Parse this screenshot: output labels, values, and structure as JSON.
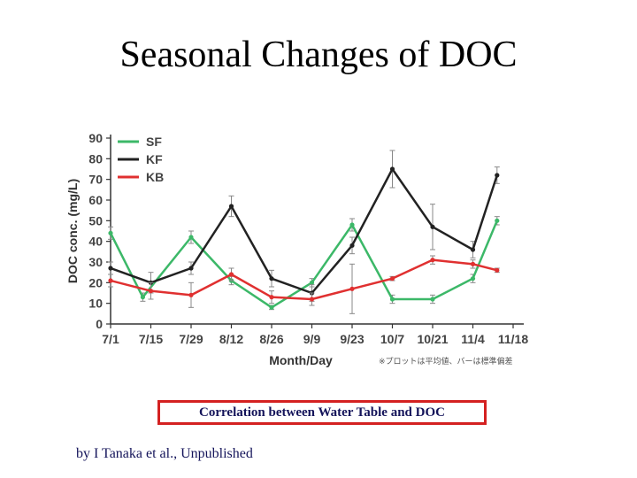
{
  "slide": {
    "title": "Seasonal Changes of DOC",
    "caption": "Correlation between Water Table and DOC",
    "attribution": "by I Tanaka et al., Unpublished"
  },
  "chart_data": {
    "type": "line",
    "title": "",
    "xlabel": "Month/Day",
    "ylabel": "DOC conc. (mg/L)",
    "x_note": "※プロットは平均値、バーは標準偏差",
    "ylim": [
      0,
      90
    ],
    "yticks": [
      0,
      10,
      20,
      30,
      40,
      50,
      60,
      70,
      80,
      90
    ],
    "categories": [
      "7/1",
      "7/15",
      "7/29",
      "8/12",
      "8/26",
      "9/9",
      "9/23",
      "10/7",
      "10/21",
      "11/4",
      "11/18"
    ],
    "legend_position": "top-left",
    "series": [
      {
        "name": "SF",
        "color": "#3cb868",
        "x": [
          0,
          0.8,
          2,
          3,
          4,
          5,
          6,
          7,
          8,
          9,
          9.6
        ],
        "values": [
          44,
          13,
          42,
          21,
          8,
          20,
          48,
          12,
          12,
          22,
          50
        ],
        "err": [
          3,
          2,
          3,
          2,
          1,
          2,
          3,
          2,
          2,
          2,
          2
        ]
      },
      {
        "name": "KF",
        "color": "#222222",
        "x": [
          0,
          1,
          2,
          3,
          4,
          5,
          6,
          7,
          8,
          9,
          9.6
        ],
        "values": [
          27,
          20,
          27,
          57,
          22,
          15,
          38,
          75,
          47,
          36,
          72
        ],
        "err": [
          3,
          5,
          3,
          5,
          4,
          4,
          4,
          9,
          11,
          4,
          4
        ]
      },
      {
        "name": "KB",
        "color": "#e03030",
        "x": [
          0,
          1,
          2,
          3,
          4,
          5,
          6,
          7,
          8,
          9,
          9.6
        ],
        "values": [
          21,
          16,
          14,
          24,
          13,
          12,
          17,
          22,
          31,
          29,
          26
        ],
        "err": [
          3,
          4,
          6,
          3,
          3,
          3,
          12,
          1,
          2,
          2,
          1
        ]
      }
    ]
  }
}
